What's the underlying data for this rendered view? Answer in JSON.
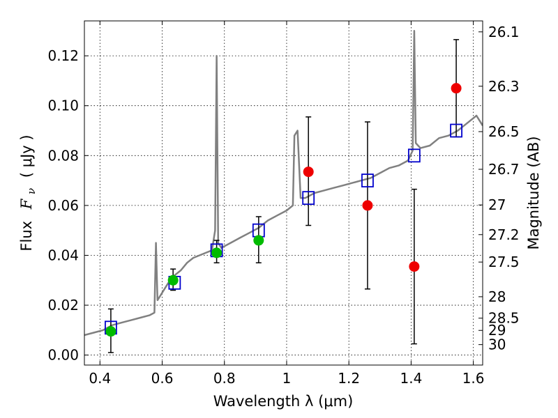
{
  "chart_data": {
    "type": "scatter",
    "xlabel": "Wavelength  λ (μm)",
    "ylabel_prefix": "Flux",
    "ylabel_symbol": "F",
    "ylabel_subscript": "ν",
    "ylabel_unit": "( μJy )",
    "y2label": "Magnitude (AB)",
    "xlim": [
      0.35,
      1.63
    ],
    "ylim": [
      -0.004,
      0.134
    ],
    "grid": true,
    "x_ticks": [
      0.4,
      0.6,
      0.8,
      1.0,
      1.2,
      1.4,
      1.6
    ],
    "x_tick_labels": [
      "0.4",
      "0.6",
      "0.8",
      "1",
      "1.2",
      "1.4",
      "1.6"
    ],
    "y_ticks": [
      0.0,
      0.02,
      0.04,
      0.06,
      0.08,
      0.1,
      0.12
    ],
    "y_tick_labels": [
      "0.00",
      "0.02",
      "0.04",
      "0.06",
      "0.08",
      "0.10",
      "0.12"
    ],
    "mag_ticks": [
      {
        "label": "26.1",
        "flux": 0.1296
      },
      {
        "label": "26.3",
        "flux": 0.1078
      },
      {
        "label": "26.5",
        "flux": 0.0896
      },
      {
        "label": "26.7",
        "flux": 0.0745
      },
      {
        "label": "27",
        "flux": 0.0602
      },
      {
        "label": "27.2",
        "flux": 0.0483
      },
      {
        "label": "27.5",
        "flux": 0.0373
      },
      {
        "label": "28",
        "flux": 0.0234
      },
      {
        "label": "28.5",
        "flux": 0.0148
      },
      {
        "label": "29",
        "flux": 0.0099
      },
      {
        "label": "30",
        "flux": 0.0042
      }
    ],
    "colors": {
      "spectrum": "#808080",
      "model": "#0000cc",
      "detection": "#00bb00",
      "upper": "#ee0000",
      "errorbar": "#000000"
    },
    "spectrum": {
      "name": "",
      "x": [
        0.35,
        0.38,
        0.41,
        0.44,
        0.47,
        0.5,
        0.53,
        0.56,
        0.575,
        0.58,
        0.585,
        0.6,
        0.62,
        0.64,
        0.66,
        0.68,
        0.7,
        0.72,
        0.74,
        0.76,
        0.77,
        0.775,
        0.78,
        0.79,
        0.82,
        0.85,
        0.88,
        0.91,
        0.94,
        0.97,
        1.0,
        1.02,
        1.025,
        1.035,
        1.045,
        1.06,
        1.09,
        1.12,
        1.15,
        1.18,
        1.21,
        1.24,
        1.27,
        1.3,
        1.33,
        1.36,
        1.39,
        1.405,
        1.41,
        1.415,
        1.43,
        1.46,
        1.49,
        1.52,
        1.55,
        1.58,
        1.61,
        1.63
      ],
      "y": [
        0.008,
        0.009,
        0.01,
        0.012,
        0.013,
        0.014,
        0.015,
        0.016,
        0.017,
        0.045,
        0.022,
        0.025,
        0.029,
        0.032,
        0.034,
        0.037,
        0.039,
        0.04,
        0.041,
        0.042,
        0.05,
        0.12,
        0.045,
        0.043,
        0.045,
        0.047,
        0.049,
        0.051,
        0.054,
        0.056,
        0.058,
        0.06,
        0.088,
        0.09,
        0.063,
        0.063,
        0.065,
        0.066,
        0.067,
        0.068,
        0.069,
        0.07,
        0.071,
        0.073,
        0.075,
        0.076,
        0.078,
        0.082,
        0.13,
        0.085,
        0.083,
        0.084,
        0.087,
        0.088,
        0.09,
        0.093,
        0.096,
        0.092
      ]
    },
    "model_points": {
      "name": "",
      "x": [
        0.435,
        0.64,
        0.775,
        0.91,
        1.07,
        1.26,
        1.41,
        1.545
      ],
      "y": [
        0.011,
        0.029,
        0.042,
        0.05,
        0.063,
        0.07,
        0.08,
        0.09
      ]
    },
    "detections": {
      "name": "",
      "x": [
        0.435,
        0.635,
        0.775,
        0.91
      ],
      "y": [
        0.0095,
        0.03,
        0.041,
        0.046
      ],
      "yerr_low": [
        0.0085,
        0.004,
        0.004,
        0.009
      ],
      "yerr_high": [
        0.009,
        0.0045,
        0.005,
        0.0095
      ]
    },
    "non_detections": {
      "name": "",
      "x": [
        1.07,
        1.26,
        1.41,
        1.545
      ],
      "y": [
        0.0735,
        0.06,
        0.0355,
        0.107
      ],
      "yerr_low": [
        0.0215,
        0.0335,
        0.031,
        0.0195
      ],
      "yerr_high": [
        0.022,
        0.0335,
        0.031,
        0.0195
      ]
    }
  }
}
